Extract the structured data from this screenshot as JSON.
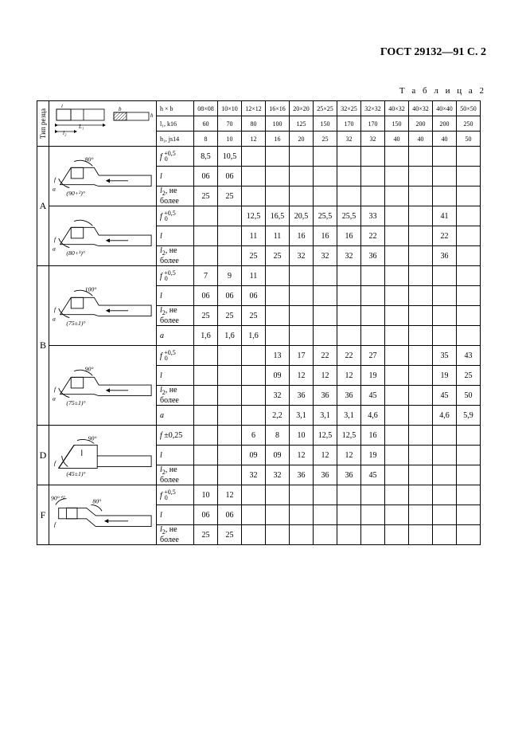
{
  "page_header": "ГОСТ 29132—91 С. 2",
  "table_label": "Т а б л и ц а  2",
  "vert_label": "Тип резца",
  "header_rows": {
    "hb": "h × b",
    "l1": "l₁, k16",
    "h1": "h₁, js14",
    "sizes": [
      "08×08",
      "10×10",
      "12×12",
      "16×16",
      "20×20",
      "25×25",
      "32×25",
      "32×32",
      "40×32",
      "40×32",
      "40×40",
      "50×50"
    ],
    "l1v": [
      "60",
      "70",
      "80",
      "100",
      "125",
      "150",
      "170",
      "170",
      "150",
      "200",
      "200",
      "250"
    ],
    "h1v": [
      "8",
      "10",
      "12",
      "16",
      "20",
      "25",
      "32",
      "32",
      "40",
      "40",
      "40",
      "50"
    ]
  },
  "groups": [
    {
      "type": "A",
      "blocks": [
        {
          "diagram": "A1",
          "angle1": "80°",
          "angle2": "(90+²)°",
          "rows": [
            {
              "param": "f ₀⁺⁰·⁵",
              "vals": [
                "8,5",
                "10,5",
                "",
                "",
                "",
                "",
                "",
                "",
                "",
                "",
                "",
                ""
              ]
            },
            {
              "param": "l",
              "vals": [
                "06",
                "06",
                "",
                "",
                "",
                "",
                "",
                "",
                "",
                "",
                "",
                ""
              ]
            },
            {
              "param": "l₂, не более",
              "vals": [
                "25",
                "25",
                "",
                "",
                "",
                "",
                "",
                "",
                "",
                "",
                "",
                ""
              ]
            }
          ]
        },
        {
          "diagram": "A2",
          "angle1": "",
          "angle2": "(80+¹)°",
          "rows": [
            {
              "param": "f ₀⁺⁰·⁵",
              "vals": [
                "",
                "",
                "12,5",
                "16,5",
                "20,5",
                "25,5",
                "25,5",
                "33",
                "",
                "",
                "41",
                ""
              ]
            },
            {
              "param": "l",
              "vals": [
                "",
                "",
                "11",
                "11",
                "16",
                "16",
                "16",
                "22",
                "",
                "",
                "22",
                ""
              ]
            },
            {
              "param": "l₂, не более",
              "vals": [
                "",
                "",
                "25",
                "25",
                "32",
                "32",
                "32",
                "36",
                "",
                "",
                "36",
                ""
              ]
            }
          ]
        }
      ]
    },
    {
      "type": "B",
      "blocks": [
        {
          "diagram": "B1",
          "angle1": "100°",
          "angle2": "(75±1)°",
          "rows": [
            {
              "param": "f ₀⁺⁰·⁵",
              "vals": [
                "7",
                "9",
                "11",
                "",
                "",
                "",
                "",
                "",
                "",
                "",
                "",
                ""
              ]
            },
            {
              "param": "l",
              "vals": [
                "06",
                "06",
                "06",
                "",
                "",
                "",
                "",
                "",
                "",
                "",
                "",
                ""
              ]
            },
            {
              "param": "l₂, не более",
              "vals": [
                "25",
                "25",
                "25",
                "",
                "",
                "",
                "",
                "",
                "",
                "",
                "",
                ""
              ]
            },
            {
              "param": "a",
              "vals": [
                "1,6",
                "1,6",
                "1,6",
                "",
                "",
                "",
                "",
                "",
                "",
                "",
                "",
                ""
              ]
            }
          ]
        },
        {
          "diagram": "B2",
          "angle1": "90°",
          "angle2": "(75±1)°",
          "rows": [
            {
              "param": "f ₀⁺⁰·⁵",
              "vals": [
                "",
                "",
                "",
                "13",
                "17",
                "22",
                "22",
                "27",
                "",
                "",
                "35",
                "43"
              ]
            },
            {
              "param": "l",
              "vals": [
                "",
                "",
                "",
                "09",
                "12",
                "12",
                "12",
                "19",
                "",
                "",
                "19",
                "25"
              ]
            },
            {
              "param": "l₂, не более",
              "vals": [
                "",
                "",
                "",
                "32",
                "36",
                "36",
                "36",
                "45",
                "",
                "",
                "45",
                "50"
              ]
            },
            {
              "param": "a",
              "vals": [
                "",
                "",
                "",
                "2,2",
                "3,1",
                "3,1",
                "3,1",
                "4,6",
                "",
                "",
                "4,6",
                "5,9"
              ]
            }
          ]
        }
      ]
    },
    {
      "type": "D",
      "blocks": [
        {
          "diagram": "D1",
          "angle1": "90°",
          "angle2": "(45±1)°",
          "rows": [
            {
              "param": "f ±0,25",
              "vals": [
                "",
                "",
                "6",
                "8",
                "10",
                "12,5",
                "12,5",
                "16",
                "",
                "",
                "",
                ""
              ]
            },
            {
              "param": "l",
              "vals": [
                "",
                "",
                "09",
                "09",
                "12",
                "12",
                "12",
                "19",
                "",
                "",
                "",
                ""
              ]
            },
            {
              "param": "l₂, не более",
              "vals": [
                "",
                "",
                "32",
                "32",
                "36",
                "36",
                "36",
                "45",
                "",
                "",
                "",
                ""
              ]
            }
          ]
        }
      ]
    },
    {
      "type": "F",
      "blocks": [
        {
          "diagram": "F1",
          "angle1": "80°",
          "angle2": "90°⁺²",
          "rows": [
            {
              "param": "f ₀⁺⁰·⁵",
              "vals": [
                "10",
                "12",
                "",
                "",
                "",
                "",
                "",
                "",
                "",
                "",
                "",
                ""
              ]
            },
            {
              "param": "l",
              "vals": [
                "06",
                "06",
                "",
                "",
                "",
                "",
                "",
                "",
                "",
                "",
                "",
                ""
              ]
            },
            {
              "param": "l₂, не более",
              "vals": [
                "25",
                "25",
                "",
                "",
                "",
                "",
                "",
                "",
                "",
                "",
                "",
                ""
              ]
            }
          ]
        }
      ]
    }
  ]
}
